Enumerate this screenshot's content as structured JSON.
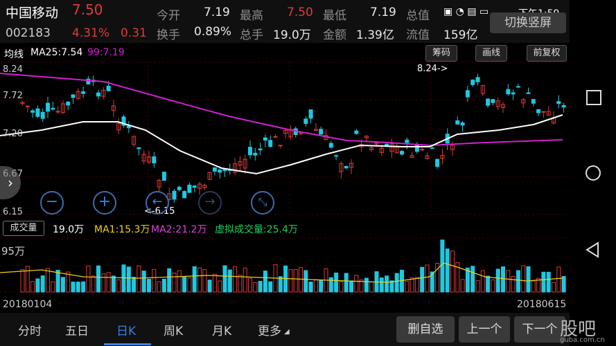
{
  "status": {
    "time": "下午1:59"
  },
  "stock": {
    "name": "中国移动",
    "price": "7.50",
    "code": "002183",
    "change_pct": "4.31%",
    "change_amt": "0.31"
  },
  "quote": {
    "row1": [
      {
        "label": "今开",
        "value": "7.19"
      },
      {
        "label": "最高",
        "value": "7.50"
      },
      {
        "label": "最低",
        "value": "7.19"
      },
      {
        "label": "总值",
        "value": "---"
      }
    ],
    "row2": [
      {
        "label": "换手",
        "value": "0.89%"
      },
      {
        "label": "总手",
        "value": "19.0万"
      },
      {
        "label": "金额",
        "value": "1.39亿"
      },
      {
        "label": "流值",
        "value": "159亿"
      }
    ],
    "switch_label": "切换竖屏"
  },
  "indicators": {
    "tag": "均线",
    "ma25": "MA25:7.54",
    "ma99": "99:7.19",
    "chips": [
      "筹码",
      "画线",
      "前复权"
    ]
  },
  "price_axis": {
    "top": "8.24",
    "upper": "7.72",
    "mid": "7.20",
    "lower": "6.67",
    "bottom": "6.15",
    "high_marker": "8.24->",
    "low_marker": "<-6.15"
  },
  "volume": {
    "tag": "成交量",
    "value": "19.0万",
    "ma1": "MA1:15.3万",
    "ma2": "MA2:21.2万",
    "virtual": "虚拟成交量:25.4万",
    "axis_top": "95万"
  },
  "dates": {
    "start": "20180104",
    "end": "20180615"
  },
  "tabs": [
    "分时",
    "五日",
    "日K",
    "周K",
    "月K",
    "更多"
  ],
  "buttons": {
    "delete_fav": "删自选",
    "prev": "上一个",
    "next": "下一个"
  },
  "watermark": {
    "logo": "股吧",
    "site": "guba.com.cn"
  },
  "colors": {
    "up": "#e03a3a",
    "down": "#1ec8e0",
    "ma_fast": "#ffffff",
    "ma_slow": "#d020d0",
    "accent": "#3d7fe0"
  }
}
